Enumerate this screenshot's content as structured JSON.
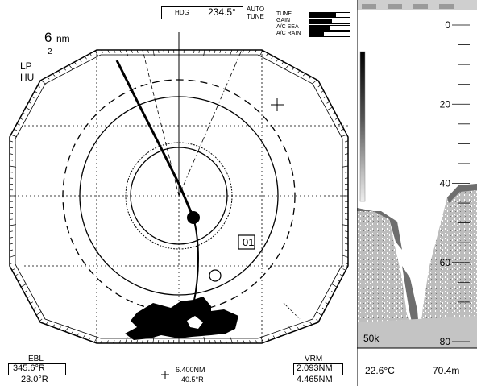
{
  "radar": {
    "range_value": "6",
    "range_unit": "nm",
    "range_ring_interval": "2",
    "pulse_mode": "LP",
    "orientation": "HU",
    "heading_label": "HDG",
    "heading_value": "234.5°",
    "tune_mode_line1": "AUTO",
    "tune_mode_line2": "TUNE",
    "target_id": "01",
    "cursor": {
      "distance": "6.400NM",
      "bearing": "40.5°R"
    }
  },
  "levels": [
    {
      "label": "TUNE",
      "level": 0.65
    },
    {
      "label": "GAIN",
      "level": 0.55
    },
    {
      "label": "A/C SEA",
      "level": 0.5
    },
    {
      "label": "A/C RAIN",
      "level": 0.35
    }
  ],
  "ebl": {
    "label": "EBL",
    "value1": "345.6°R",
    "value2": "23.0°R"
  },
  "vrm": {
    "label": "VRM",
    "value1": "2.093NM",
    "value2": "4.465NM"
  },
  "sounder": {
    "depth_ticks": [
      "0",
      "20",
      "40",
      "60",
      "80"
    ],
    "depth_range": [
      0,
      80
    ],
    "frequency": "50k",
    "water_temp": "22.6°C",
    "depth": "70.4m"
  }
}
